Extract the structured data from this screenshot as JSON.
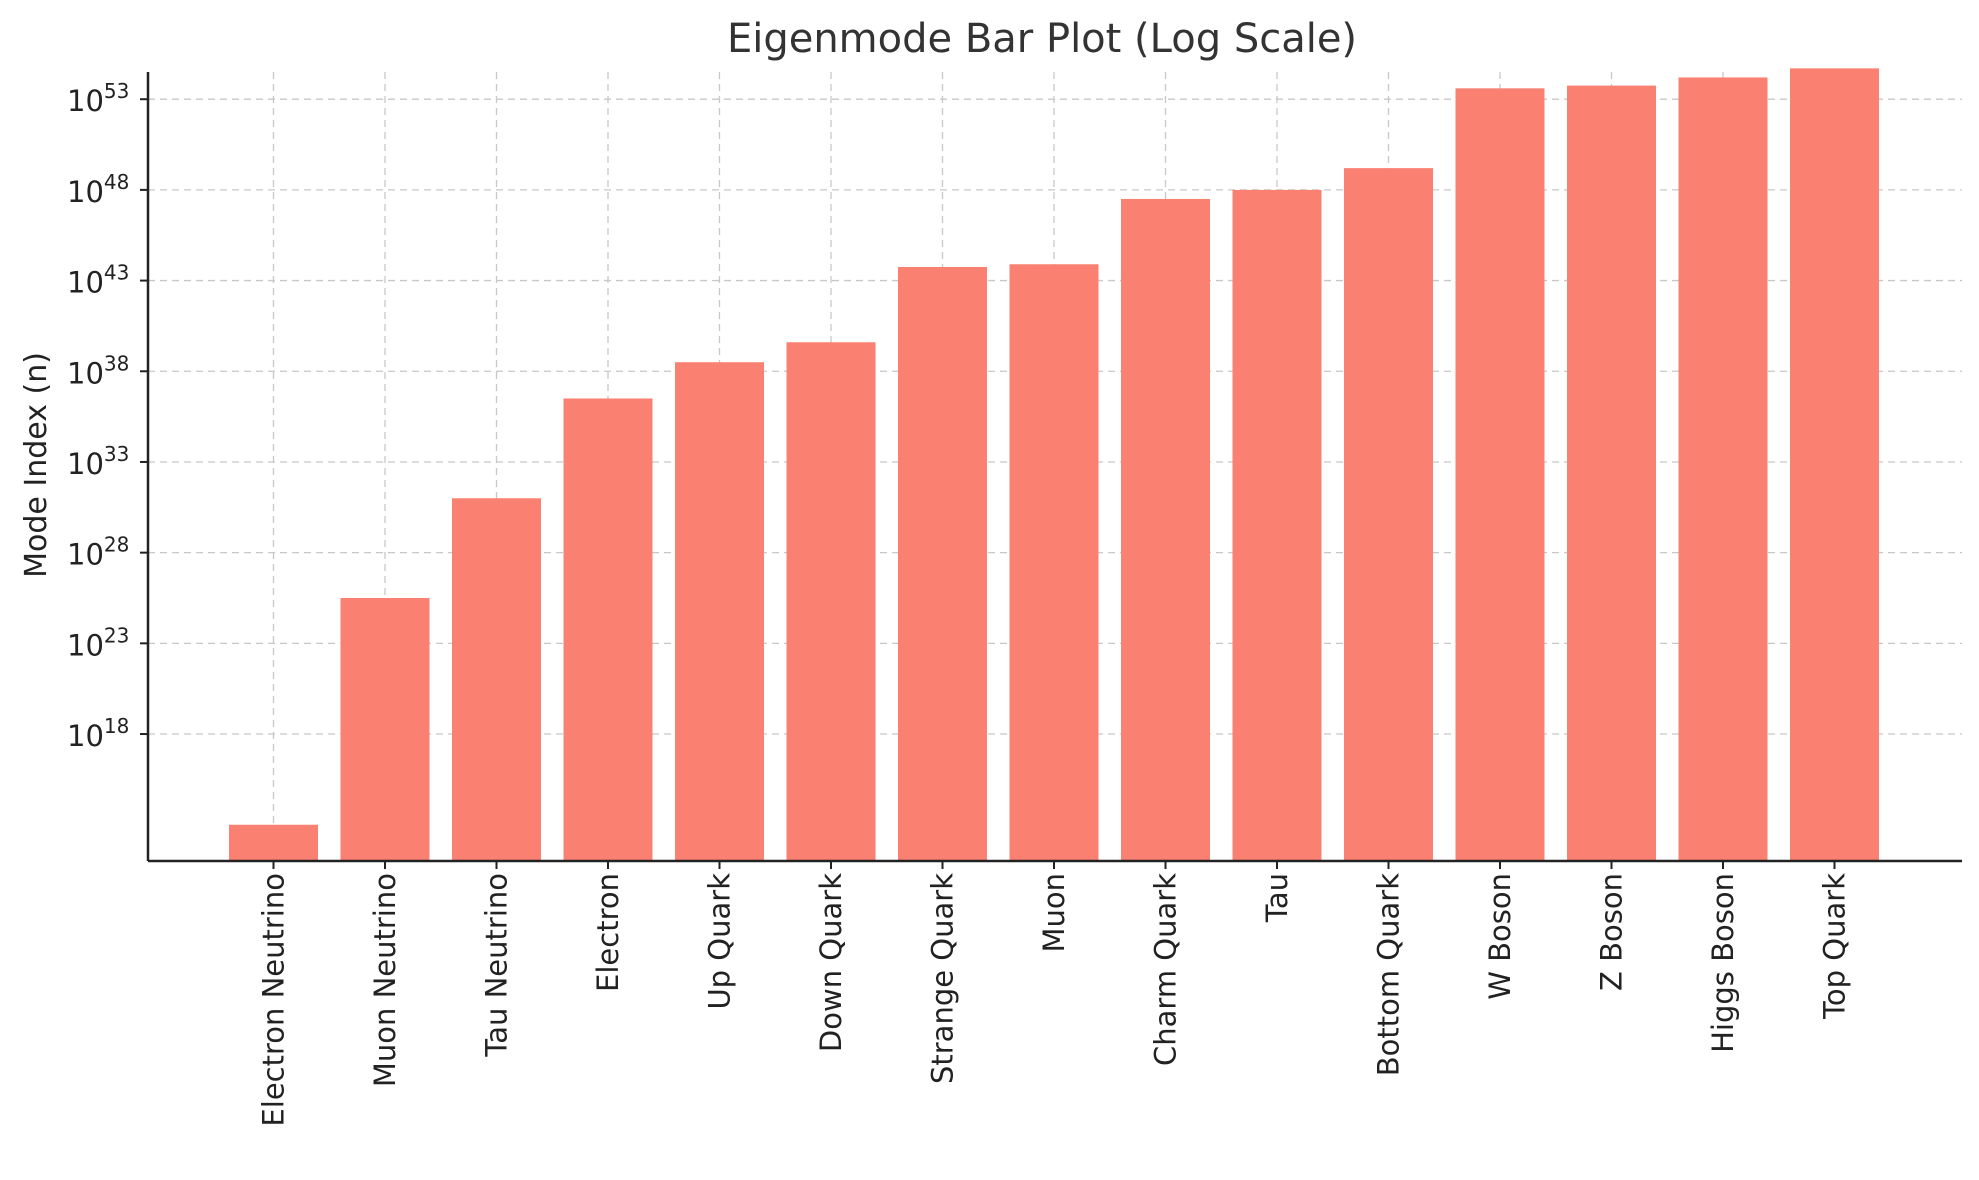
{
  "chart_data": {
    "type": "bar",
    "title": "Eigenmode Bar Plot (Log Scale)",
    "xlabel": "",
    "ylabel": "Mode Index (n)",
    "y_scale": "log",
    "ylim_log10": [
      11.0,
      54.5
    ],
    "grid": true,
    "bar_color": "#fa8072",
    "y_ticks": [
      {
        "base": "10",
        "exp": "18",
        "log10": 18
      },
      {
        "base": "10",
        "exp": "23",
        "log10": 23
      },
      {
        "base": "10",
        "exp": "28",
        "log10": 28
      },
      {
        "base": "10",
        "exp": "33",
        "log10": 33
      },
      {
        "base": "10",
        "exp": "38",
        "log10": 38
      },
      {
        "base": "10",
        "exp": "43",
        "log10": 43
      },
      {
        "base": "10",
        "exp": "48",
        "log10": 48
      },
      {
        "base": "10",
        "exp": "53",
        "log10": 53
      }
    ],
    "categories": [
      "Electron Neutrino",
      "Muon Neutrino",
      "Tau Neutrino",
      "Electron",
      "Up Quark",
      "Down Quark",
      "Strange Quark",
      "Muon",
      "Charm Quark",
      "Tau",
      "Bottom Quark",
      "W Boson",
      "Z Boson",
      "Higgs Boson",
      "Top Quark"
    ],
    "values_log10": [
      13.0,
      25.5,
      31.0,
      36.5,
      38.5,
      39.6,
      43.75,
      43.9,
      47.5,
      48.0,
      49.2,
      53.6,
      53.75,
      54.2,
      54.7
    ]
  }
}
